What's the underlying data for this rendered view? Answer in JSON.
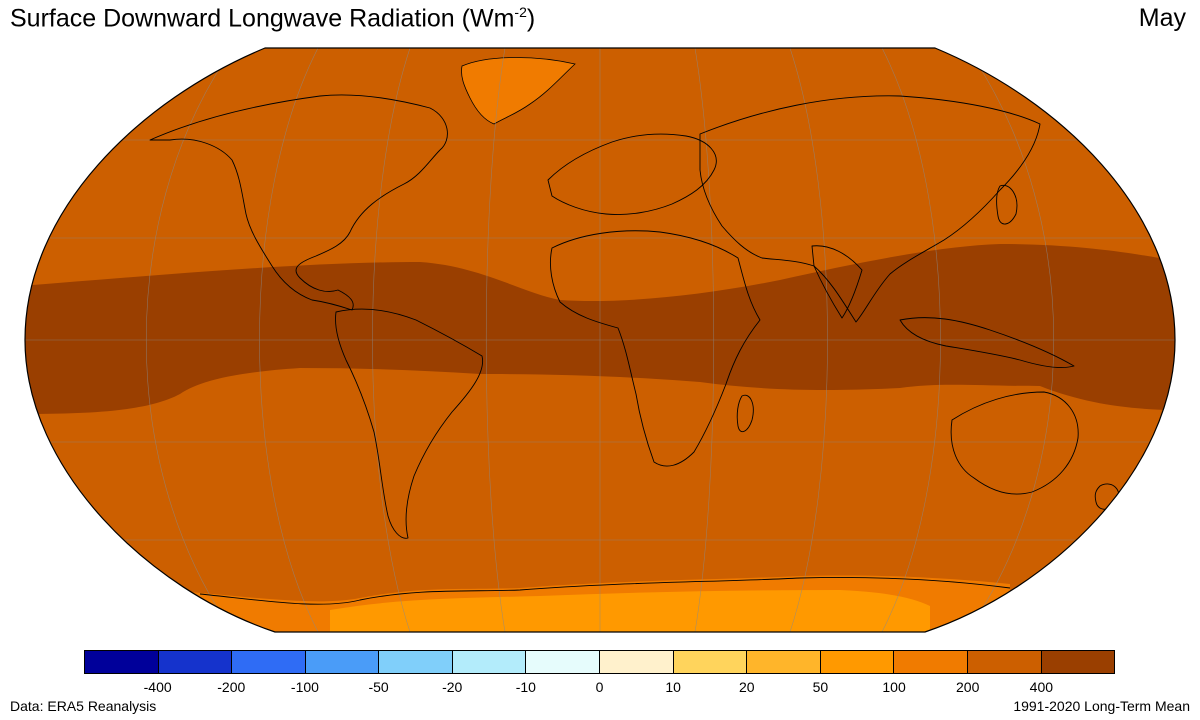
{
  "header": {
    "title_main": "Surface Downward Longwave Radiation (Wm",
    "title_sup": "-2",
    "title_close": ")",
    "month": "May"
  },
  "colorbar": {
    "colors": [
      "#00009a",
      "#1533cc",
      "#2f6cf5",
      "#4a9cf8",
      "#80cffa",
      "#b3ecfb",
      "#e6fcfc",
      "#fff1cc",
      "#ffd45c",
      "#ffb52a",
      "#ff9900",
      "#f07b00",
      "#cc5f00",
      "#9a3f00"
    ],
    "tick_labels": [
      "-400",
      "-200",
      "-100",
      "-50",
      "-20",
      "-10",
      "0",
      "10",
      "20",
      "50",
      "100",
      "200",
      "400"
    ]
  },
  "map": {
    "ocean_color": "#cc5f00",
    "tropical_band_color": "#9a3f00",
    "polar_color": "#f07b00",
    "antarctic_interior_color": "#ff9900"
  },
  "footer": {
    "source": "Data: ERA5 Reanalysis",
    "period": "1991-2020 Long-Term Mean"
  }
}
